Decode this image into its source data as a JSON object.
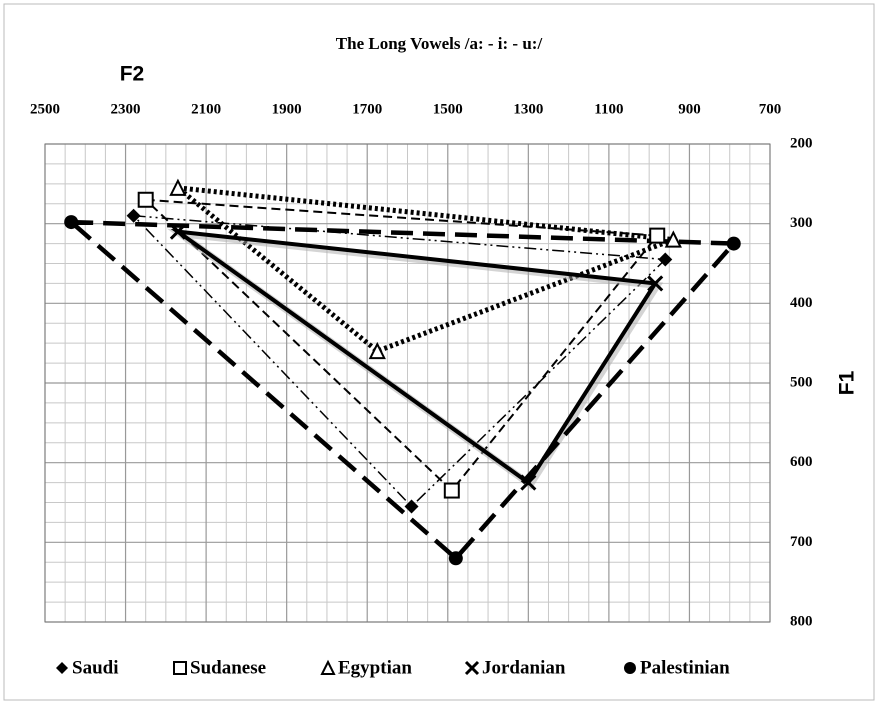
{
  "chart_data": {
    "type": "scatter",
    "title": "The Long Vowels /a: - i: - u:/",
    "x_label": "F2",
    "y_label": "F1",
    "xlim": [
      2500,
      700
    ],
    "xticks": [
      2500,
      2300,
      2100,
      1900,
      1700,
      1500,
      1300,
      1100,
      900,
      700
    ],
    "ylim": [
      200,
      800
    ],
    "yticks": [
      200,
      300,
      400,
      500,
      600,
      700,
      800
    ],
    "grid": true,
    "legend": "bottom",
    "series": [
      {
        "name": "Saudi",
        "marker": "diamond",
        "line": "dash-dot-dot",
        "color": "#000000",
        "x": [
          2280,
          960,
          1590
        ],
        "values": [
          290,
          345,
          655
        ]
      },
      {
        "name": "Sudanese",
        "marker": "square",
        "line": "dash",
        "color": "#000000",
        "x": [
          2250,
          980,
          1490
        ],
        "values": [
          270,
          315,
          635
        ]
      },
      {
        "name": "Egyptian",
        "marker": "triangle",
        "line": "dot",
        "color": "#000000",
        "x": [
          2170,
          940,
          1675
        ],
        "values": [
          255,
          320,
          460
        ]
      },
      {
        "name": "Jordanian",
        "marker": "x",
        "line": "solid",
        "color": "#000000",
        "x": [
          2170,
          985,
          1300
        ],
        "values": [
          310,
          375,
          625
        ]
      },
      {
        "name": "Palestinian",
        "marker": "circle",
        "line": "long-dash",
        "color": "#000000",
        "x": [
          2435,
          790,
          1480
        ],
        "values": [
          298,
          325,
          720
        ]
      }
    ]
  }
}
